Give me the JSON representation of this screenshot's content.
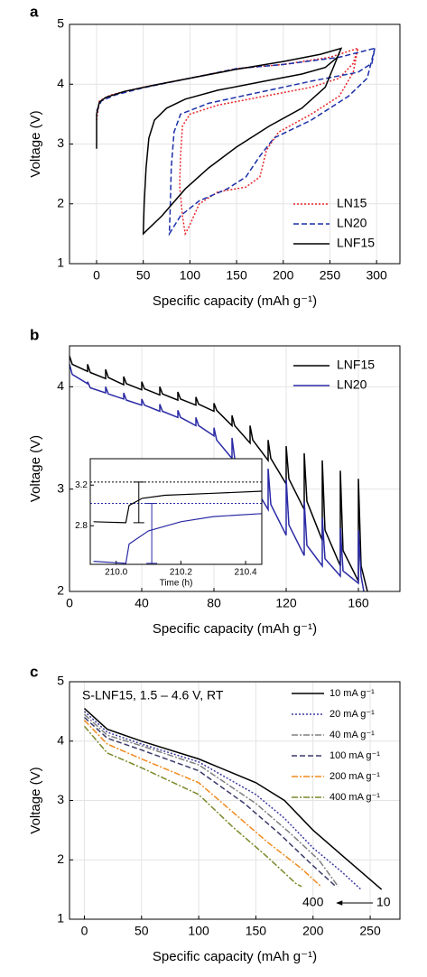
{
  "chart_data": [
    {
      "type": "line",
      "label": "a",
      "xlabel": "Specific capacity (mAh g⁻¹)",
      "ylabel": "Voltage (V)",
      "xlim": [
        -29,
        325
      ],
      "ylim": [
        1,
        5
      ],
      "xticks": [
        0,
        50,
        100,
        150,
        200,
        250,
        300
      ],
      "yticks": [
        1,
        2,
        3,
        4,
        5
      ],
      "grid": true,
      "legend": "lower right",
      "series": [
        {
          "name": "LN15",
          "color": "#e8262b",
          "dash": "dotted",
          "x": [
            0,
            3,
            15,
            50,
            100,
            150,
            200,
            250,
            280,
            275,
            260,
            230,
            180,
            130,
            100,
            92,
            90,
            89,
            92,
            95,
            100,
            110,
            130,
            160,
            175,
            182,
            195,
            230,
            260,
            275,
            280
          ],
          "values": [
            3.4,
            3.72,
            3.82,
            3.95,
            4.1,
            4.26,
            4.33,
            4.45,
            4.6,
            4.35,
            4.1,
            3.95,
            3.8,
            3.65,
            3.5,
            3.3,
            2.8,
            2.3,
            1.8,
            1.5,
            1.65,
            2.0,
            2.2,
            2.28,
            2.45,
            2.9,
            3.2,
            3.5,
            3.8,
            4.2,
            4.6
          ]
        },
        {
          "name": "LN20",
          "color": "#1c2fa8",
          "dash": "dashed",
          "x": [
            0,
            5,
            20,
            50,
            100,
            150,
            200,
            260,
            298,
            295,
            280,
            230,
            170,
            120,
            90,
            83,
            80,
            79,
            78,
            90,
            110,
            140,
            160,
            175,
            190,
            230,
            270,
            290,
            298
          ],
          "values": [
            3.55,
            3.72,
            3.82,
            3.94,
            4.1,
            4.26,
            4.33,
            4.45,
            4.6,
            4.35,
            4.2,
            4.05,
            3.85,
            3.68,
            3.5,
            3.2,
            2.6,
            2.0,
            1.5,
            1.8,
            2.05,
            2.25,
            2.45,
            2.8,
            3.1,
            3.4,
            3.8,
            4.1,
            4.6
          ]
        },
        {
          "name": "LNF15",
          "color": "#000000",
          "dash": "solid",
          "x": [
            0,
            0,
            3,
            10,
            30,
            60,
            100,
            150,
            200,
            240,
            262,
            258,
            245,
            220,
            180,
            130,
            95,
            75,
            62,
            56,
            53,
            51,
            50,
            70,
            95,
            120,
            150,
            185,
            220,
            245,
            262
          ],
          "values": [
            2.92,
            3.5,
            3.7,
            3.78,
            3.88,
            3.98,
            4.1,
            4.25,
            4.38,
            4.5,
            4.6,
            4.45,
            4.28,
            4.17,
            4.05,
            3.9,
            3.75,
            3.6,
            3.4,
            3.1,
            2.6,
            2.0,
            1.5,
            1.8,
            2.25,
            2.6,
            2.95,
            3.3,
            3.6,
            3.95,
            4.6
          ]
        }
      ]
    },
    {
      "type": "line",
      "label": "b",
      "xlabel": "Specific capacity (mAh g⁻¹)",
      "ylabel": "Voltage (V)",
      "xlim": [
        0,
        183
      ],
      "ylim": [
        2,
        4.4
      ],
      "xticks": [
        0,
        40,
        80,
        120,
        160
      ],
      "yticks": [
        2,
        3,
        4
      ],
      "grid": true,
      "legend": "upper right",
      "series": [
        {
          "name": "LNF15",
          "color": "#000000",
          "dash": "solid",
          "x": [
            0,
            1.5,
            10,
            10,
            11.5,
            20,
            20,
            21.5,
            30,
            30,
            31.5,
            40,
            40,
            41.5,
            50,
            50,
            51.5,
            60,
            60,
            61.5,
            70,
            70,
            71.5,
            80,
            80,
            81.5,
            90,
            90,
            91.5,
            100,
            100,
            101.5,
            110,
            110,
            111.5,
            120,
            120,
            121.5,
            130,
            130,
            131.5,
            140,
            140,
            141.5,
            150,
            150,
            151.5,
            160,
            160,
            161.5,
            165
          ],
          "values": [
            4.3,
            4.22,
            4.15,
            4.22,
            4.14,
            4.08,
            4.17,
            4.09,
            4.02,
            4.1,
            4.03,
            3.97,
            4.05,
            3.98,
            3.92,
            4.0,
            3.93,
            3.87,
            3.95,
            3.88,
            3.82,
            3.9,
            3.83,
            3.76,
            3.84,
            3.77,
            3.62,
            3.72,
            3.62,
            3.45,
            3.62,
            3.48,
            3.28,
            3.48,
            3.3,
            3.05,
            3.42,
            3.1,
            2.8,
            3.35,
            2.88,
            2.5,
            3.28,
            2.6,
            2.25,
            3.18,
            2.4,
            2.1,
            3.1,
            2.25,
            2.0
          ]
        },
        {
          "name": "LN20",
          "color": "#2a2aa5",
          "dash": "solid",
          "x": [
            0,
            1.5,
            10,
            10,
            11.5,
            20,
            20,
            21.5,
            30,
            30,
            31.5,
            40,
            40,
            41.5,
            50,
            50,
            51.5,
            60,
            60,
            61.5,
            70,
            70,
            71.5,
            80,
            80,
            81.5,
            90,
            90,
            91.5,
            100,
            100,
            101.5,
            110,
            110,
            111.5,
            120,
            120,
            121.5,
            130,
            130,
            131.5,
            140,
            140,
            141.5,
            150,
            150,
            151.5,
            160,
            160,
            161.5,
            163
          ],
          "values": [
            4.22,
            4.12,
            4.03,
            4.05,
            3.99,
            3.94,
            4.0,
            3.93,
            3.88,
            3.94,
            3.87,
            3.82,
            3.88,
            3.82,
            3.76,
            3.83,
            3.76,
            3.7,
            3.77,
            3.7,
            3.62,
            3.7,
            3.62,
            3.52,
            3.6,
            3.48,
            3.3,
            3.5,
            3.3,
            3.05,
            3.3,
            3.05,
            2.8,
            3.2,
            2.85,
            2.55,
            3.1,
            2.65,
            2.35,
            2.88,
            2.45,
            2.25,
            2.72,
            2.32,
            2.15,
            2.62,
            2.2,
            2.08,
            2.6,
            2.15,
            2.0
          ]
        }
      ]
    },
    {
      "type": "line",
      "xlabel": "Time (h)",
      "xlim": [
        209.92,
        210.45
      ],
      "ylim": [
        2.42,
        3.46
      ],
      "xticks": [
        {
          "value": 210,
          "label": "210.0"
        },
        210.2,
        210.4
      ],
      "yticks": [
        2.8,
        3.2
      ],
      "grid": false,
      "series": [
        {
          "color": "#000000",
          "dash": "solid",
          "x": [
            209.93,
            210.03,
            210.04,
            210.08,
            210.15,
            210.3,
            210.45
          ],
          "values": [
            2.84,
            2.83,
            3.0,
            3.07,
            3.1,
            3.12,
            3.14
          ]
        },
        {
          "color": "#2a2aa5",
          "dash": "solid",
          "x": [
            209.93,
            210.03,
            210.04,
            210.1,
            210.2,
            210.3,
            210.45
          ],
          "values": [
            2.45,
            2.43,
            2.62,
            2.75,
            2.84,
            2.89,
            2.92
          ]
        }
      ],
      "hlines": [
        {
          "value": 3.23,
          "color": "#000000"
        },
        {
          "value": 3.02,
          "color": "#2a2aa5"
        }
      ],
      "ranges": [
        {
          "x": 210.07,
          "low": 2.83,
          "high": 3.23,
          "color": "#000000"
        },
        {
          "x": 210.11,
          "low": 2.43,
          "high": 3.02,
          "color": "#2a2aa5"
        }
      ]
    },
    {
      "type": "line",
      "label": "c",
      "subtitle": "S-LNF15, 1.5 – 4.6 V, RT",
      "xlabel": "Specific capacity (mAh g⁻¹)",
      "ylabel": "Voltage (V)",
      "xlim": [
        -13,
        276
      ],
      "ylim": [
        1,
        5
      ],
      "xticks": [
        0,
        50,
        100,
        150,
        200,
        250
      ],
      "yticks": [
        1,
        2,
        3,
        4,
        5
      ],
      "grid": true,
      "legend": "upper right",
      "arrow_labels": [
        "400",
        "10"
      ],
      "series": [
        {
          "name": "10 mA g⁻¹",
          "color": "#000000",
          "dash": "solid",
          "x": [
            0,
            20,
            50,
            100,
            150,
            175,
            200,
            230,
            260
          ],
          "values": [
            4.55,
            4.2,
            4.0,
            3.7,
            3.3,
            3.0,
            2.5,
            2.0,
            1.5
          ]
        },
        {
          "name": "20 mA g⁻¹",
          "color": "#3a3aa0",
          "dash": "dotted",
          "x": [
            0,
            20,
            50,
            100,
            150,
            175,
            200,
            225,
            242
          ],
          "values": [
            4.5,
            4.15,
            3.95,
            3.65,
            3.1,
            2.7,
            2.2,
            1.8,
            1.5
          ]
        },
        {
          "name": "40 mA g⁻¹",
          "color": "#808080",
          "dash": "dashdot",
          "x": [
            0,
            20,
            50,
            100,
            150,
            180,
            205,
            222
          ],
          "values": [
            4.45,
            4.1,
            3.92,
            3.6,
            2.95,
            2.45,
            2.0,
            1.55
          ]
        },
        {
          "name": "100 mA g⁻¹",
          "color": "#3a3a6a",
          "dash": "dashed",
          "x": [
            0,
            20,
            50,
            100,
            140,
            170,
            200,
            220
          ],
          "values": [
            4.4,
            4.05,
            3.85,
            3.5,
            2.95,
            2.45,
            1.9,
            1.55
          ]
        },
        {
          "name": "200 mA g⁻¹",
          "color": "#f08a1e",
          "dash": "dashdot",
          "x": [
            0,
            20,
            50,
            100,
            130,
            160,
            190,
            207
          ],
          "values": [
            4.35,
            3.95,
            3.7,
            3.3,
            2.8,
            2.3,
            1.85,
            1.55
          ]
        },
        {
          "name": "400 mA g⁻¹",
          "color": "#7a8a2a",
          "dash": "dashdot",
          "x": [
            0,
            20,
            50,
            100,
            130,
            160,
            185,
            190
          ],
          "values": [
            4.25,
            3.8,
            3.55,
            3.1,
            2.55,
            2.05,
            1.6,
            1.55
          ]
        }
      ]
    }
  ]
}
